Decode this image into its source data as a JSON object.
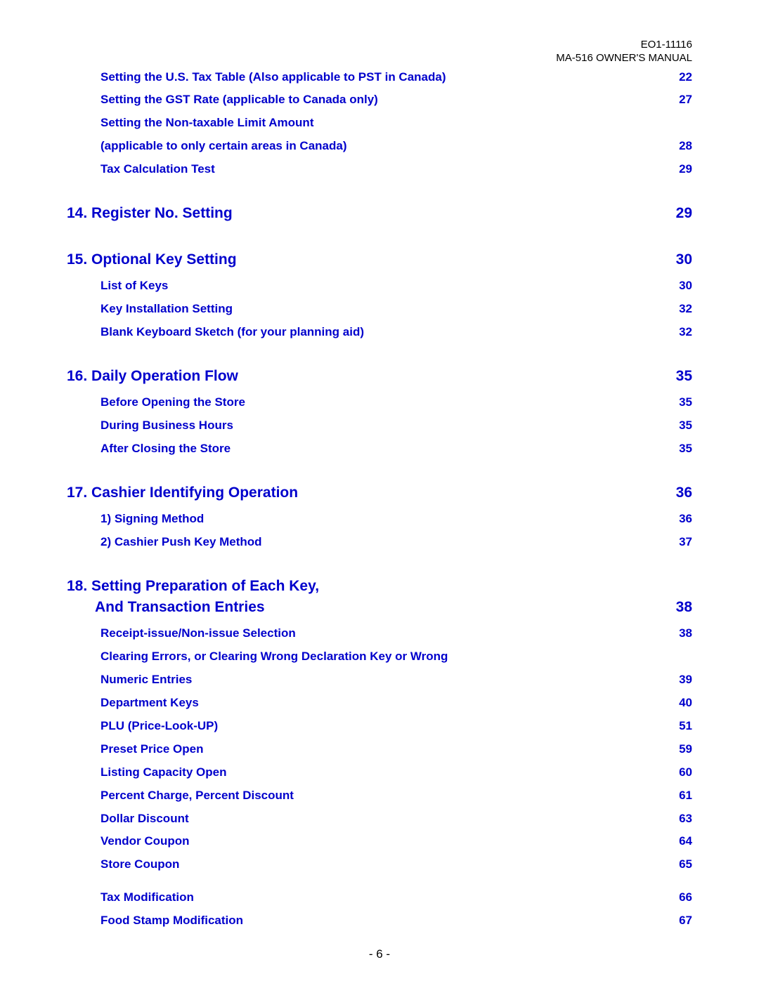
{
  "header": {
    "line1": "EO1-11116",
    "line2": "MA-516 OWNER'S MANUAL"
  },
  "colors": {
    "link": "#0000cc",
    "text": "#000000",
    "background": "#ffffff"
  },
  "fonts": {
    "family": "Arial, Helvetica, sans-serif",
    "section_size_pt": 16,
    "sub_size_pt": 13,
    "header_size_pt": 11
  },
  "pre_subs": [
    {
      "label": "Setting the U.S. Tax Table (Also applicable to PST in Canada)",
      "page": "22"
    },
    {
      "label": "Setting the GST Rate (applicable to Canada only)",
      "page": "27"
    },
    {
      "label": "Setting the Non-taxable Limit Amount",
      "page": null
    },
    {
      "label": "(applicable to only certain areas in Canada)",
      "page": "28"
    },
    {
      "label": "Tax Calculation Test",
      "page": "29"
    }
  ],
  "sections": [
    {
      "num": "14.",
      "title": "Register No. Setting",
      "page": "29",
      "subs": []
    },
    {
      "num": "15.",
      "title": "Optional Key Setting",
      "page": "30",
      "subs": [
        {
          "label": "List of Keys",
          "page": "30"
        },
        {
          "label": "Key Installation Setting",
          "page": "32"
        },
        {
          "label": "Blank Keyboard Sketch (for your planning aid)",
          "page": "32"
        }
      ]
    },
    {
      "num": "16.",
      "title": "Daily Operation Flow",
      "page": "35",
      "subs": [
        {
          "label": "Before Opening the Store",
          "page": "35"
        },
        {
          "label": "During Business Hours",
          "page": "35"
        },
        {
          "label": "After Closing the Store",
          "page": "35"
        }
      ]
    },
    {
      "num": "17.",
      "title": "Cashier Identifying Operation",
      "page": "36",
      "subs": [
        {
          "label": "1) Signing Method",
          "page": "36"
        },
        {
          "label": "2) Cashier Push Key Method",
          "page": "37"
        }
      ]
    },
    {
      "num": "18.",
      "title_line1": "Setting Preparation of Each Key,",
      "title_line2": "And Transaction Entries",
      "page": "38",
      "subs": [
        {
          "label": "Receipt-issue/Non-issue Selection",
          "page": "38"
        },
        {
          "label": "Clearing Errors, or Clearing Wrong Declaration Key or Wrong",
          "page": null
        },
        {
          "label": "Numeric Entries",
          "page": "39"
        },
        {
          "label": "Department Keys",
          "page": "40"
        },
        {
          "label": "PLU (Price-Look-UP)",
          "page": "51"
        },
        {
          "label": "Preset Price Open",
          "page": "59"
        },
        {
          "label": "Listing Capacity Open",
          "page": "60"
        },
        {
          "label": "Percent Charge, Percent Discount",
          "page": "61"
        },
        {
          "label": "Dollar Discount",
          "page": "63"
        },
        {
          "label": "Vendor Coupon",
          "page": "64"
        },
        {
          "label": "Store Coupon",
          "page": "65"
        },
        {
          "gap": true
        },
        {
          "label": "Tax Modification",
          "page": "66"
        },
        {
          "label": "Food Stamp Modification",
          "page": "67"
        }
      ]
    }
  ],
  "footer": "- 6 -"
}
